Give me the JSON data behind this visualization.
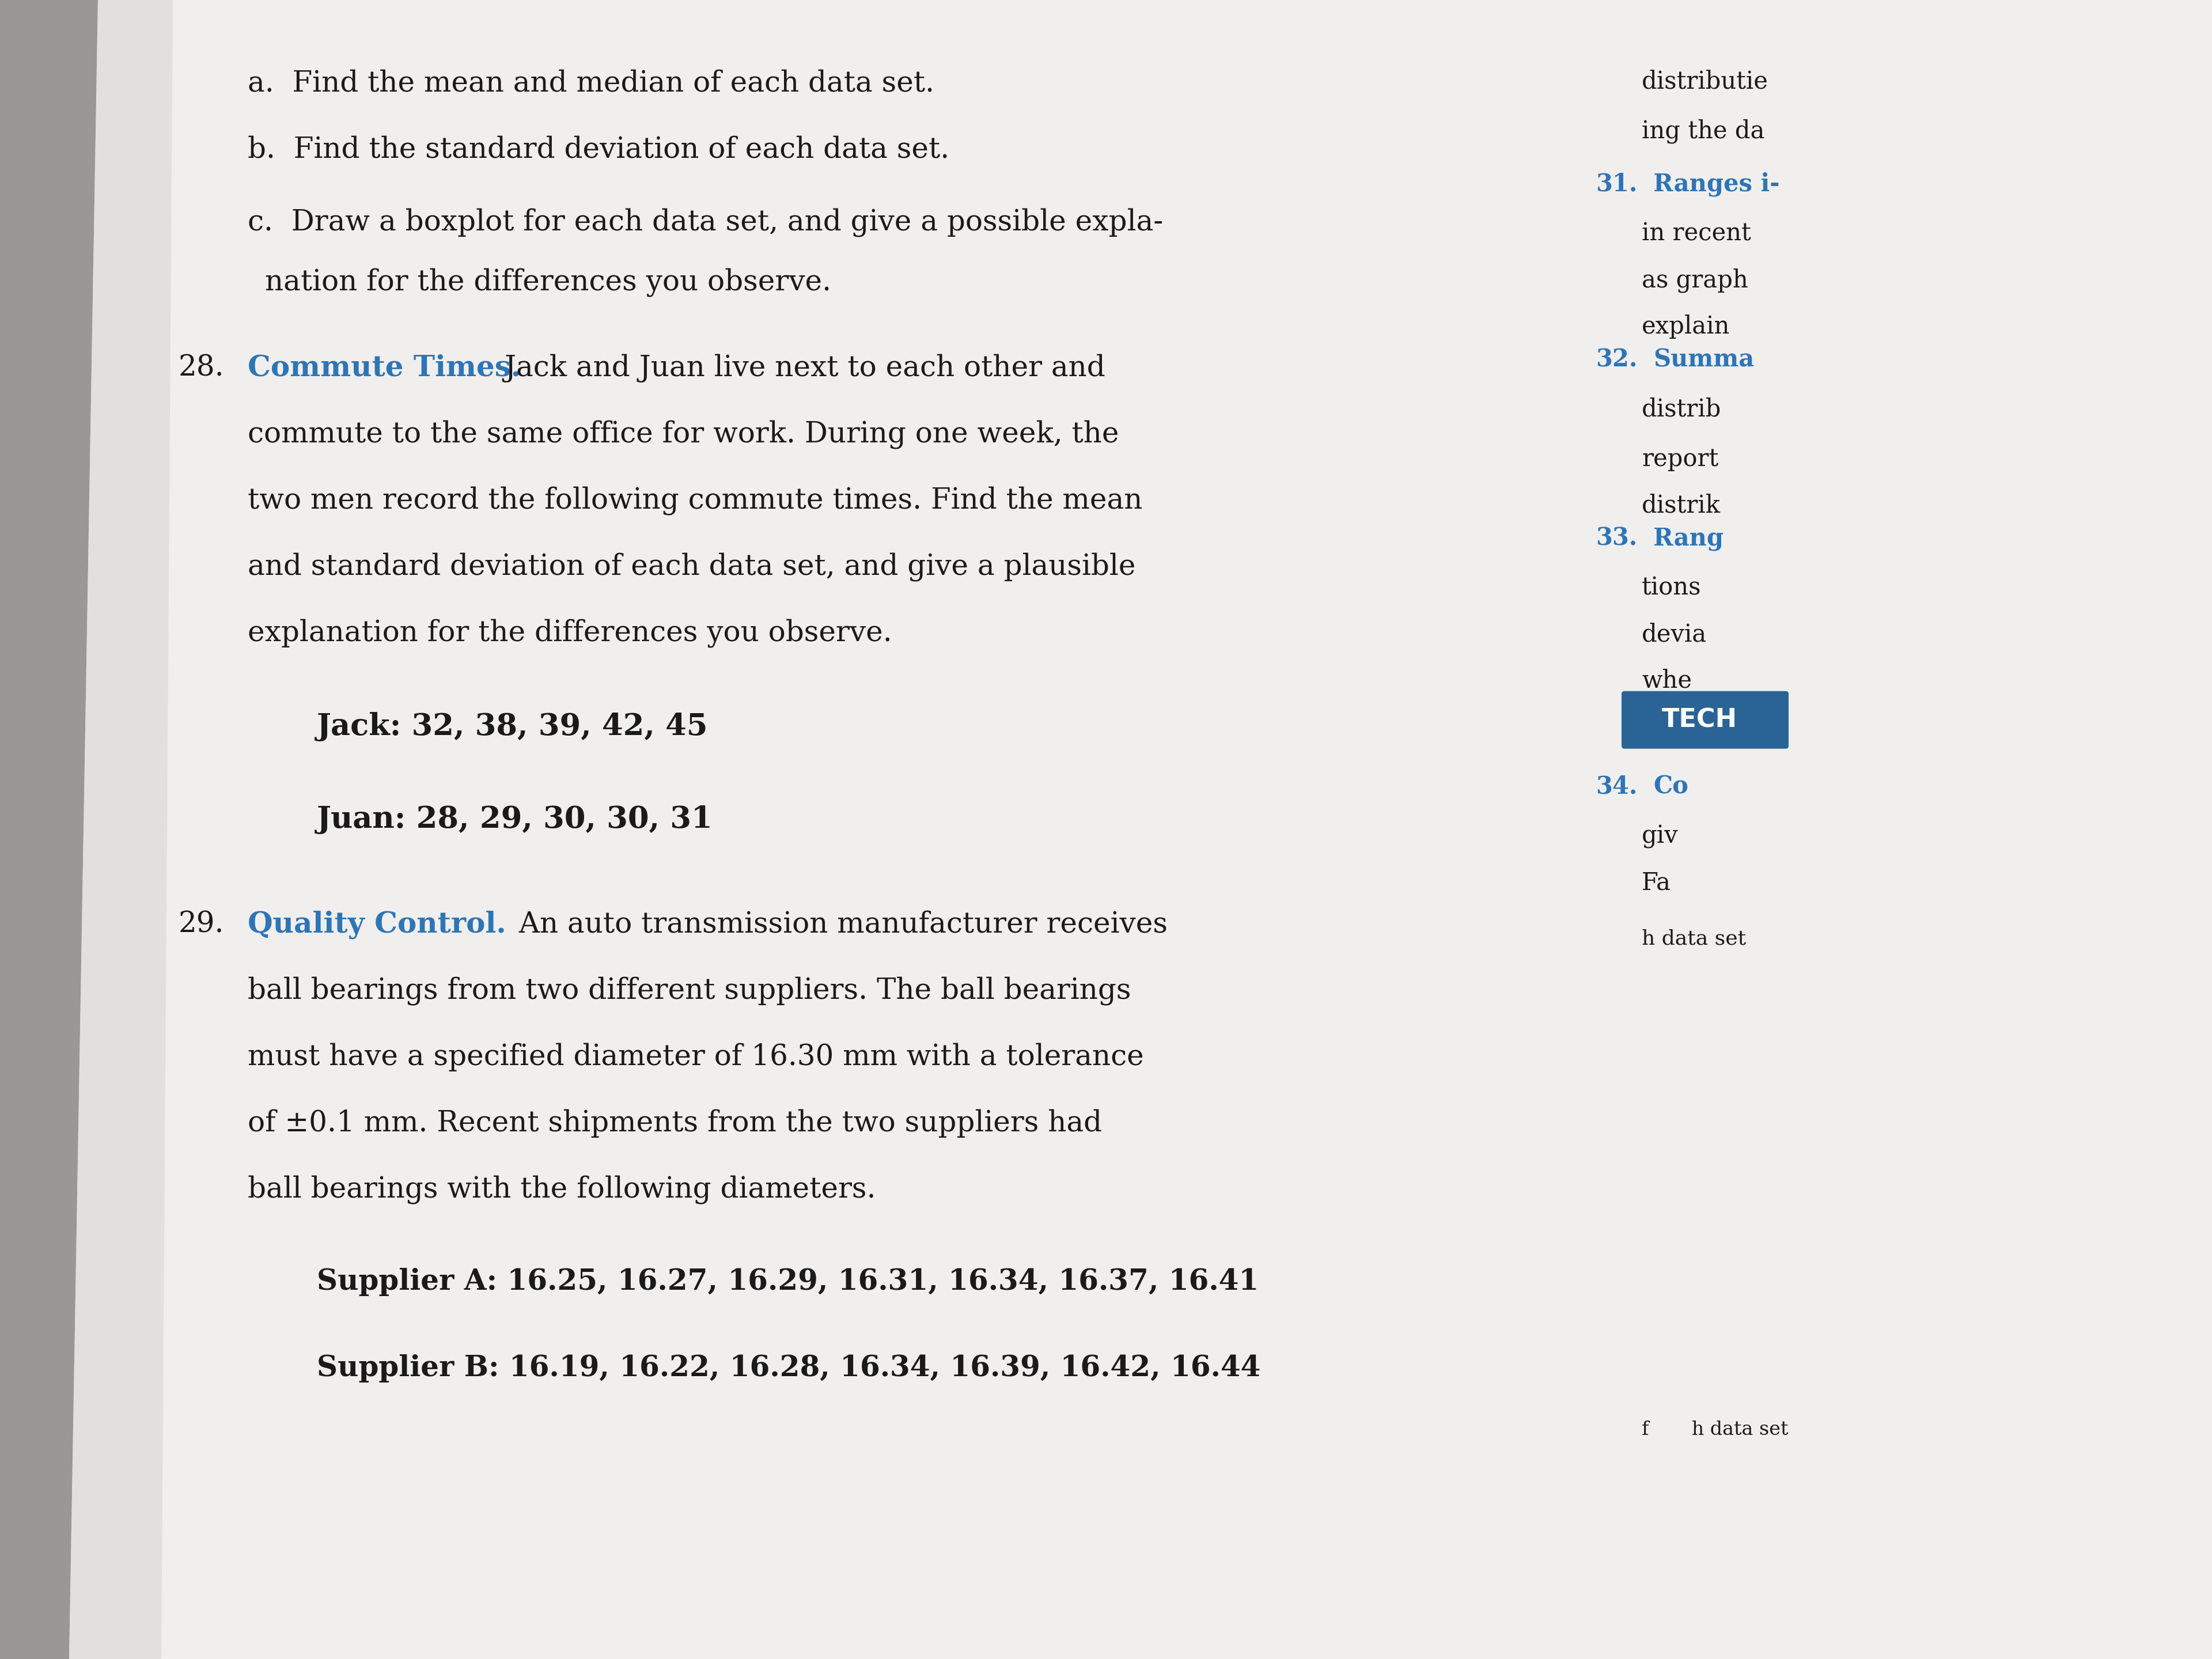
{
  "bg_color": "#e8e8e8",
  "page_color": "#f0efee",
  "left_margin_color": "#b0aeac",
  "left_column": {
    "lines": [
      {
        "text": "a.  Find the mean and median of each data set.",
        "style": "normal",
        "indent": 1,
        "size": 28
      },
      {
        "text": "b.  Find the standard deviation of each data set.",
        "style": "normal",
        "indent": 1,
        "size": 28
      },
      {
        "text": "c.  Draw a boxplot for each data set, and give a possible expla-",
        "style": "normal",
        "indent": 1,
        "size": 28
      },
      {
        "text": "      nation for the differences you observe.",
        "style": "normal",
        "indent": 0,
        "size": 28
      },
      {
        "text": "28.",
        "style": "number",
        "indent": 0,
        "size": 28
      },
      {
        "text": "Commute Times.",
        "style": "blue_bold",
        "indent": 0,
        "size": 28
      },
      {
        "text": " Jack and Juan live next to each other and",
        "style": "normal_inline",
        "indent": 0,
        "size": 28
      },
      {
        "text": "commute to the same office for work. During one week, the",
        "style": "normal",
        "indent": 1,
        "size": 28
      },
      {
        "text": "two men record the following commute times. Find the mean",
        "style": "normal",
        "indent": 1,
        "size": 28
      },
      {
        "text": "and standard deviation of each data set, and give a plausible",
        "style": "normal",
        "indent": 1,
        "size": 28
      },
      {
        "text": "explanation for the differences you observe.",
        "style": "normal",
        "indent": 1,
        "size": 28
      },
      {
        "text": "Jack: 32, 38, 39, 42, 45",
        "style": "bold",
        "indent": 2,
        "size": 30
      },
      {
        "text": "Juan: 28, 29, 30, 30, 31",
        "style": "bold",
        "indent": 2,
        "size": 30
      },
      {
        "text": "29.",
        "style": "number",
        "indent": 0,
        "size": 28
      },
      {
        "text": "Quality Control.",
        "style": "blue_bold",
        "indent": 0,
        "size": 28
      },
      {
        "text": " An auto transmission manufacturer receives",
        "style": "normal_inline",
        "indent": 0,
        "size": 28
      },
      {
        "text": "ball bearings from two different suppliers. The ball bearings",
        "style": "normal",
        "indent": 1,
        "size": 28
      },
      {
        "text": "must have a specified diameter of 16.30 mm with a tolerance",
        "style": "normal",
        "indent": 1,
        "size": 28
      },
      {
        "text": "of ±0.1 mm. Recent shipments from the two suppliers had",
        "style": "normal",
        "indent": 1,
        "size": 28
      },
      {
        "text": "ball bearings with the following diameters.",
        "style": "normal",
        "indent": 1,
        "size": 28
      },
      {
        "text": "Supplier A: 16.25, 16.27, 16.29, 16.31, 16.34, 16.37, 16.41",
        "style": "bold",
        "indent": 2,
        "size": 28
      },
      {
        "text": "Supplier B: 16.19, 16.22, 16.28, 16.34, 16.39, 16.42, 16.44",
        "style": "bold_partial",
        "indent": 2,
        "size": 28
      }
    ]
  },
  "right_column": {
    "lines": [
      {
        "text": "distributie",
        "style": "normal",
        "size": 22
      },
      {
        "text": "ing the da",
        "style": "normal",
        "size": 22
      },
      {
        "text": "31.",
        "style": "number_blue",
        "size": 22
      },
      {
        "text": "Ranges i",
        "style": "blue_bold_right",
        "size": 22
      },
      {
        "text": "in recen",
        "style": "normal",
        "size": 22
      },
      {
        "text": "as graph",
        "style": "normal",
        "size": 22
      },
      {
        "text": "explain",
        "style": "normal",
        "size": 22
      },
      {
        "text": "32.",
        "style": "number_blue",
        "size": 22
      },
      {
        "text": "Summa",
        "style": "blue_bold_right",
        "size": 22
      },
      {
        "text": "distrib",
        "style": "normal",
        "size": 22
      },
      {
        "text": "report",
        "style": "normal",
        "size": 22
      },
      {
        "text": "distrik",
        "style": "normal",
        "size": 22
      },
      {
        "text": "33.",
        "style": "number_blue",
        "size": 22
      },
      {
        "text": "Rang",
        "style": "blue_bold_right",
        "size": 22
      },
      {
        "text": "tions",
        "style": "normal",
        "size": 22
      },
      {
        "text": "devia",
        "style": "normal",
        "size": 22
      },
      {
        "text": "whe",
        "style": "normal",
        "size": 22
      },
      {
        "text": "TECH",
        "style": "tech_badge",
        "size": 22
      },
      {
        "text": "34.",
        "style": "number_blue",
        "size": 22
      },
      {
        "text": "Co",
        "style": "blue_bold_right",
        "size": 22
      },
      {
        "text": "giv",
        "style": "normal",
        "size": 22
      },
      {
        "text": "Fa",
        "style": "normal",
        "size": 22
      },
      {
        "text": "h data set",
        "style": "normal",
        "size": 20
      }
    ]
  },
  "blue_color": "#2E75B6",
  "black_color": "#1a1a1a",
  "tech_bg": "#2E75B6",
  "tech_text": "#ffffff"
}
